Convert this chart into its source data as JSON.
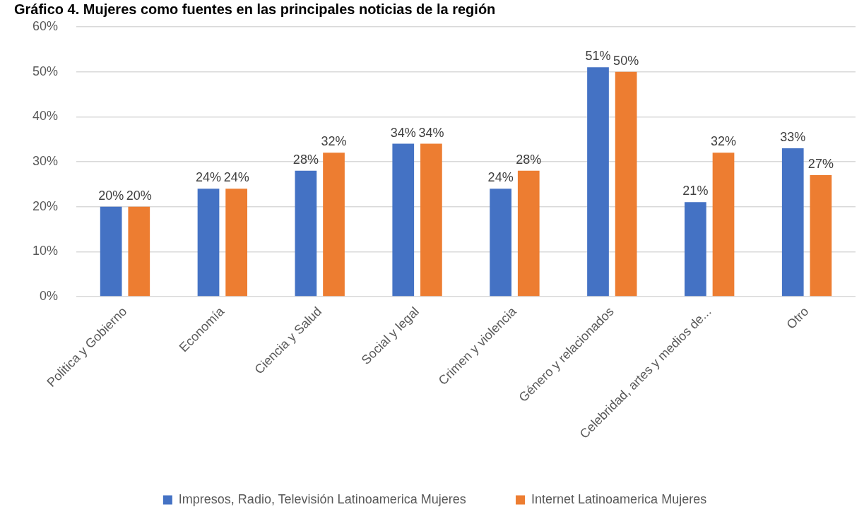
{
  "chart_data": {
    "type": "bar",
    "title": "Gráfico 4. Mujeres como fuentes en las principales noticias de la región",
    "categories": [
      "Politica y Gobierno",
      "Economía",
      "Ciencia y Salud",
      "Social y legal",
      "Crimen y violencia",
      "Género y relacionados",
      "Celebridad, artes y medios de...",
      "Otro"
    ],
    "series": [
      {
        "name": "Impresos, Radio, Televisión Latinoamerica Mujeres",
        "color": "#4472c4",
        "values": [
          20,
          24,
          28,
          34,
          24,
          51,
          21,
          33
        ],
        "value_labels": [
          "20%",
          "24%",
          "28%",
          "34%",
          "24%",
          "51%",
          "21%",
          "33%"
        ]
      },
      {
        "name": "Internet Latinoamerica Mujeres",
        "color": "#ed7d31",
        "values": [
          20,
          24,
          32,
          34,
          28,
          50,
          32,
          27
        ],
        "value_labels": [
          "20%",
          "24%",
          "32%",
          "34%",
          "28%",
          "50%",
          "32%",
          "27%"
        ]
      }
    ],
    "ylim": [
      0,
      60
    ],
    "yticks": [
      {
        "value": 0,
        "label": "0%"
      },
      {
        "value": 10,
        "label": "10%"
      },
      {
        "value": 20,
        "label": "20%"
      },
      {
        "value": 30,
        "label": "30%"
      },
      {
        "value": 40,
        "label": "40%"
      },
      {
        "value": 50,
        "label": "50%"
      },
      {
        "value": 60,
        "label": "60%"
      }
    ],
    "grid": "y",
    "legend": "bottom"
  }
}
